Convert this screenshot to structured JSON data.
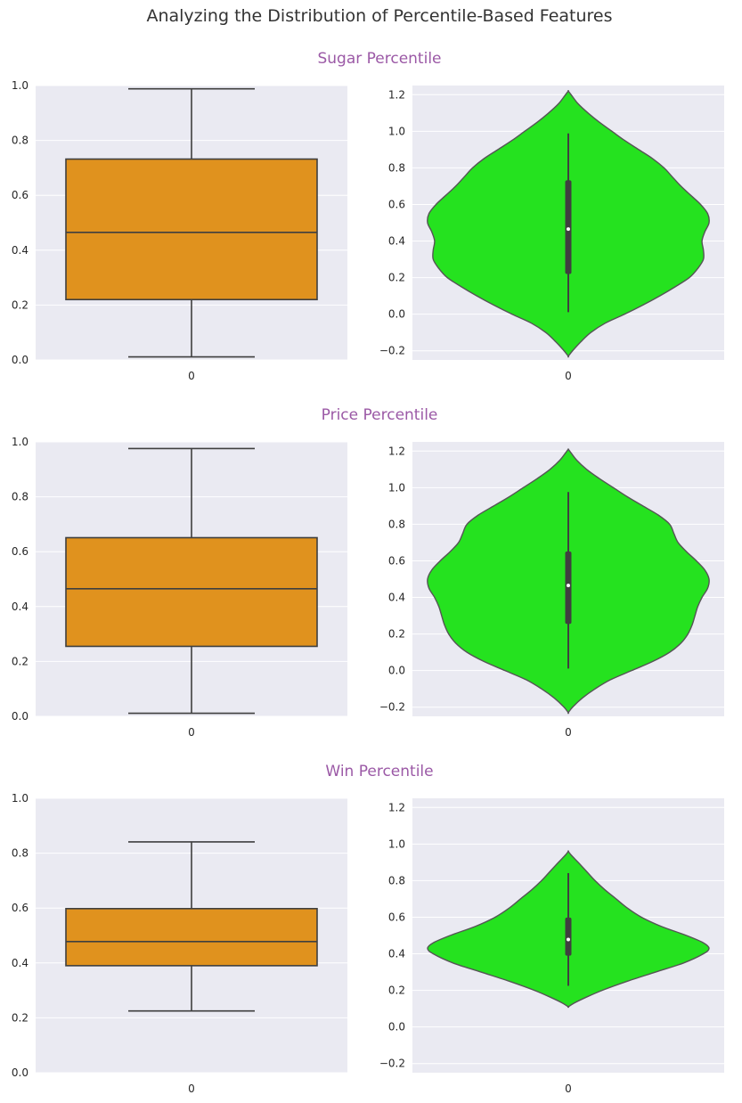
{
  "title": "Analyzing the Distribution of Percentile-Based Features",
  "colors": {
    "background": "#ffffff",
    "axes_bg": "#eaeaf2",
    "grid": "#ffffff",
    "box_fill": "#e0921e",
    "violin_fill": "#25e21f",
    "line": "#3f3f3f",
    "subtitle": "#9b59a6",
    "text": "#262626"
  },
  "chart_data": [
    {
      "type": "box",
      "section_title": "Sugar Percentile",
      "categories": [
        "0"
      ],
      "ylim": [
        0,
        1.0
      ],
      "yticks": [
        0.0,
        0.2,
        0.4,
        0.6,
        0.8,
        1.0
      ],
      "stats": {
        "whisker_low": 0.011,
        "q1": 0.22,
        "median": 0.465,
        "q3": 0.732,
        "whisker_high": 0.988
      },
      "grid": true
    },
    {
      "type": "violin",
      "categories": [
        "0"
      ],
      "ylim": [
        -0.25,
        1.25
      ],
      "yticks": [
        -0.2,
        0.0,
        0.2,
        0.4,
        0.6,
        0.8,
        1.0,
        1.2
      ],
      "stats": {
        "whisker_low": 0.011,
        "q1": 0.22,
        "median": 0.465,
        "q3": 0.732,
        "whisker_high": 0.988
      },
      "density_profile": [
        [
          -0.23,
          0.0
        ],
        [
          -0.2,
          0.03
        ],
        [
          -0.15,
          0.09
        ],
        [
          -0.1,
          0.16
        ],
        [
          -0.05,
          0.26
        ],
        [
          0.0,
          0.4
        ],
        [
          0.05,
          0.53
        ],
        [
          0.1,
          0.65
        ],
        [
          0.15,
          0.76
        ],
        [
          0.2,
          0.86
        ],
        [
          0.25,
          0.92
        ],
        [
          0.3,
          0.96
        ],
        [
          0.35,
          0.96
        ],
        [
          0.4,
          0.95
        ],
        [
          0.45,
          0.97
        ],
        [
          0.5,
          1.0
        ],
        [
          0.55,
          0.99
        ],
        [
          0.6,
          0.94
        ],
        [
          0.65,
          0.87
        ],
        [
          0.7,
          0.8
        ],
        [
          0.75,
          0.74
        ],
        [
          0.8,
          0.68
        ],
        [
          0.85,
          0.6
        ],
        [
          0.9,
          0.5
        ],
        [
          0.95,
          0.4
        ],
        [
          1.0,
          0.31
        ],
        [
          1.05,
          0.22
        ],
        [
          1.1,
          0.14
        ],
        [
          1.15,
          0.07
        ],
        [
          1.2,
          0.02
        ],
        [
          1.22,
          0.0
        ]
      ],
      "grid": true
    },
    {
      "type": "box",
      "section_title": "Price Percentile",
      "categories": [
        "0"
      ],
      "ylim": [
        0,
        1.0
      ],
      "yticks": [
        0.0,
        0.2,
        0.4,
        0.6,
        0.8,
        1.0
      ],
      "stats": {
        "whisker_low": 0.011,
        "q1": 0.255,
        "median": 0.465,
        "q3": 0.651,
        "whisker_high": 0.976
      },
      "grid": true
    },
    {
      "type": "violin",
      "categories": [
        "0"
      ],
      "ylim": [
        -0.25,
        1.25
      ],
      "yticks": [
        -0.2,
        0.0,
        0.2,
        0.4,
        0.6,
        0.8,
        1.0,
        1.2
      ],
      "stats": {
        "whisker_low": 0.011,
        "q1": 0.255,
        "median": 0.465,
        "q3": 0.651,
        "whisker_high": 0.976
      },
      "density_profile": [
        [
          -0.23,
          0.0
        ],
        [
          -0.2,
          0.03
        ],
        [
          -0.15,
          0.1
        ],
        [
          -0.1,
          0.19
        ],
        [
          -0.05,
          0.3
        ],
        [
          0.0,
          0.45
        ],
        [
          0.05,
          0.6
        ],
        [
          0.1,
          0.72
        ],
        [
          0.15,
          0.8
        ],
        [
          0.2,
          0.85
        ],
        [
          0.25,
          0.88
        ],
        [
          0.3,
          0.9
        ],
        [
          0.35,
          0.92
        ],
        [
          0.4,
          0.95
        ],
        [
          0.45,
          0.99
        ],
        [
          0.5,
          1.0
        ],
        [
          0.55,
          0.97
        ],
        [
          0.6,
          0.91
        ],
        [
          0.65,
          0.84
        ],
        [
          0.7,
          0.78
        ],
        [
          0.75,
          0.75
        ],
        [
          0.8,
          0.72
        ],
        [
          0.85,
          0.64
        ],
        [
          0.9,
          0.53
        ],
        [
          0.95,
          0.42
        ],
        [
          1.0,
          0.32
        ],
        [
          1.05,
          0.22
        ],
        [
          1.1,
          0.13
        ],
        [
          1.15,
          0.06
        ],
        [
          1.2,
          0.01
        ],
        [
          1.21,
          0.0
        ]
      ],
      "grid": true
    },
    {
      "type": "box",
      "section_title": "Win Percentile",
      "categories": [
        "0"
      ],
      "ylim": [
        0,
        1.0
      ],
      "yticks": [
        0.0,
        0.2,
        0.4,
        0.6,
        0.8,
        1.0
      ],
      "stats": {
        "whisker_low": 0.225,
        "q1": 0.39,
        "median": 0.478,
        "q3": 0.598,
        "whisker_high": 0.841
      },
      "grid": true
    },
    {
      "type": "violin",
      "categories": [
        "0"
      ],
      "ylim": [
        -0.25,
        1.25
      ],
      "yticks": [
        -0.2,
        0.0,
        0.2,
        0.4,
        0.6,
        0.8,
        1.0,
        1.2
      ],
      "stats": {
        "whisker_low": 0.225,
        "q1": 0.39,
        "median": 0.478,
        "q3": 0.598,
        "whisker_high": 0.841
      },
      "density_profile": [
        [
          0.11,
          0.0
        ],
        [
          0.13,
          0.04
        ],
        [
          0.16,
          0.12
        ],
        [
          0.2,
          0.24
        ],
        [
          0.25,
          0.42
        ],
        [
          0.3,
          0.62
        ],
        [
          0.35,
          0.82
        ],
        [
          0.4,
          0.96
        ],
        [
          0.43,
          1.0
        ],
        [
          0.46,
          0.96
        ],
        [
          0.5,
          0.84
        ],
        [
          0.55,
          0.66
        ],
        [
          0.6,
          0.52
        ],
        [
          0.65,
          0.42
        ],
        [
          0.7,
          0.34
        ],
        [
          0.75,
          0.26
        ],
        [
          0.8,
          0.19
        ],
        [
          0.85,
          0.13
        ],
        [
          0.9,
          0.07
        ],
        [
          0.94,
          0.02
        ],
        [
          0.96,
          0.0
        ]
      ],
      "grid": true
    }
  ]
}
